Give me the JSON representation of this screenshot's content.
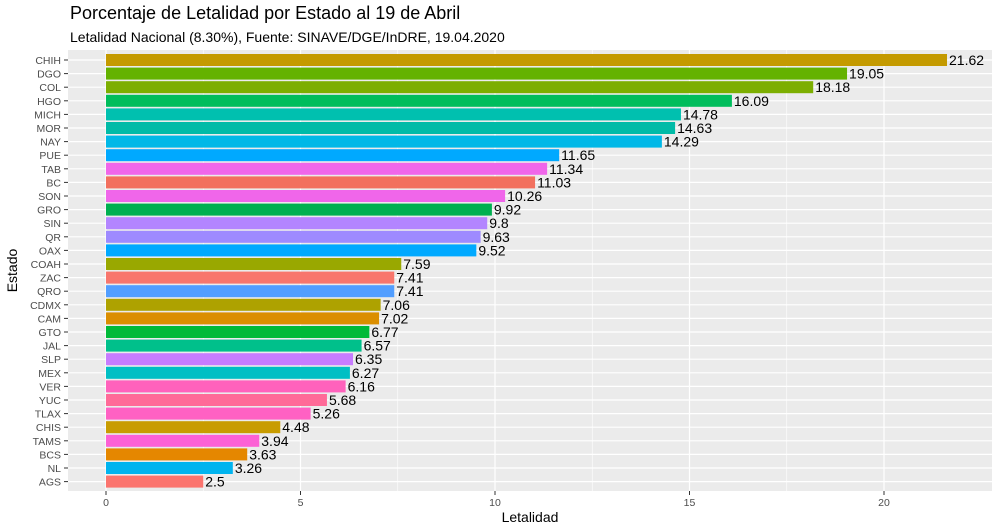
{
  "chart_data": {
    "type": "bar",
    "orientation": "horizontal",
    "title": "Porcentaje de Letalidad por Estado al 19 de Abril",
    "subtitle": "Letalidad Nacional (8.30%), Fuente: SINAVE/DGE/InDRE, 19.04.2020",
    "xlabel": "Letalidad",
    "ylabel": "Estado",
    "xlim": [
      0,
      22
    ],
    "xticks": [
      0,
      5,
      10,
      15,
      20
    ],
    "grid": true,
    "legend": "none",
    "categories": [
      "CHIH",
      "DGO",
      "COL",
      "HGO",
      "MICH",
      "MOR",
      "NAY",
      "PUE",
      "TAB",
      "BC",
      "SON",
      "GRO",
      "SIN",
      "QR",
      "OAX",
      "COAH",
      "ZAC",
      "QRO",
      "CDMX",
      "CAM",
      "GTO",
      "JAL",
      "SLP",
      "MEX",
      "VER",
      "YUC",
      "TLAX",
      "CHIS",
      "TAMS",
      "BCS",
      "NL",
      "AGS"
    ],
    "values": [
      21.62,
      19.05,
      18.18,
      16.09,
      14.78,
      14.63,
      14.29,
      11.65,
      11.34,
      11.03,
      10.26,
      9.92,
      9.8,
      9.63,
      9.52,
      7.59,
      7.41,
      7.41,
      7.06,
      7.02,
      6.77,
      6.57,
      6.35,
      6.27,
      6.16,
      5.68,
      5.26,
      4.48,
      3.94,
      3.63,
      3.26,
      2.5
    ],
    "value_labels": [
      "21.62",
      "19.05",
      "18.18",
      "16.09",
      "14.78",
      "14.63",
      "14.29",
      "11.65",
      "11.34",
      "11.03",
      "10.26",
      "9.92",
      "9.8",
      "9.63",
      "9.52",
      "7.59",
      "7.41",
      "7.41",
      "7.06",
      "7.02",
      "6.77",
      "6.57",
      "6.35",
      "6.27",
      "6.16",
      "5.68",
      "5.26",
      "4.48",
      "3.94",
      "3.63",
      "3.26",
      "2.5"
    ],
    "colors": [
      "#C49A00",
      "#64B200",
      "#7CAE00",
      "#00BD5C",
      "#00C0AF",
      "#00BBA7",
      "#00B8E7",
      "#00A9FF",
      "#F066EA",
      "#F2705E",
      "#F066EA",
      "#00B050",
      "#B385FF",
      "#9E8AFF",
      "#00A9FF",
      "#99A800",
      "#F8766D",
      "#529EFF",
      "#AEA200",
      "#DB8E00",
      "#00BA38",
      "#00C08B",
      "#C77CFF",
      "#00BFC4",
      "#FF62BC",
      "#FF6A98",
      "#FF61C3",
      "#C89C00",
      "#FC61D5",
      "#E58700",
      "#00B4EF",
      "#FB746E"
    ],
    "background_color": "#EBEBEB",
    "grid_color": "#FFFFFF"
  }
}
